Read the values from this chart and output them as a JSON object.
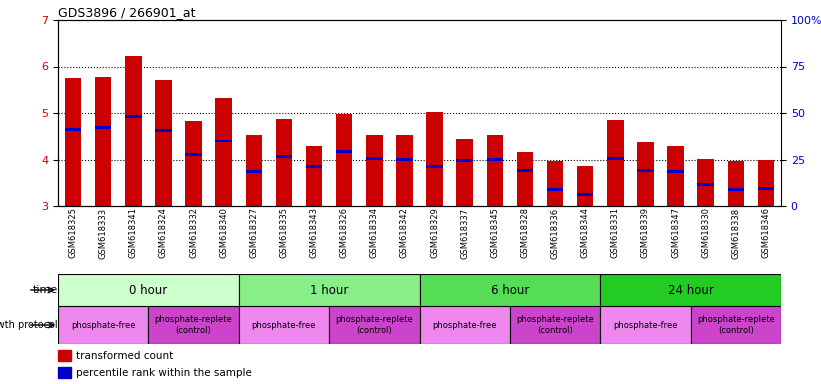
{
  "title": "GDS3896 / 266901_at",
  "samples": [
    "GSM618325",
    "GSM618333",
    "GSM618341",
    "GSM618324",
    "GSM618332",
    "GSM618340",
    "GSM618327",
    "GSM618335",
    "GSM618343",
    "GSM618326",
    "GSM618334",
    "GSM618342",
    "GSM618329",
    "GSM618337",
    "GSM618345",
    "GSM618328",
    "GSM618336",
    "GSM618344",
    "GSM618331",
    "GSM618339",
    "GSM618347",
    "GSM618330",
    "GSM618338",
    "GSM618346"
  ],
  "bar_tops": [
    5.75,
    5.78,
    6.22,
    5.72,
    4.82,
    5.33,
    4.52,
    4.88,
    4.28,
    4.98,
    4.52,
    4.52,
    5.02,
    4.45,
    4.52,
    4.17,
    3.97,
    3.87,
    4.85,
    4.37,
    4.3,
    4.02,
    3.97,
    3.98
  ],
  "bar_bottoms": [
    3.0,
    3.0,
    3.0,
    3.0,
    3.0,
    3.0,
    3.0,
    3.0,
    3.0,
    3.0,
    3.0,
    3.0,
    3.0,
    3.0,
    3.0,
    3.0,
    3.0,
    3.0,
    3.0,
    3.0,
    3.0,
    3.0,
    3.0,
    3.0
  ],
  "blue_marks": [
    4.65,
    4.68,
    4.93,
    4.62,
    4.1,
    4.4,
    3.75,
    4.07,
    3.85,
    4.17,
    4.02,
    4.0,
    3.85,
    3.98,
    4.0,
    3.77,
    3.35,
    3.25,
    4.02,
    3.77,
    3.75,
    3.47,
    3.35,
    3.37
  ],
  "ylim": [
    3,
    7
  ],
  "yticks_left": [
    3,
    4,
    5,
    6,
    7
  ],
  "yticks_right": [
    0,
    25,
    50,
    75,
    100
  ],
  "bar_color": "#cc0000",
  "blue_color": "#0000cc",
  "time_groups": [
    {
      "label": "0 hour",
      "start": 0,
      "end": 6,
      "color": "#ccffcc"
    },
    {
      "label": "1 hour",
      "start": 6,
      "end": 12,
      "color": "#88ee88"
    },
    {
      "label": "6 hour",
      "start": 12,
      "end": 18,
      "color": "#55dd55"
    },
    {
      "label": "24 hour",
      "start": 18,
      "end": 24,
      "color": "#22cc22"
    }
  ],
  "prot_groups": [
    {
      "label": "phosphate-free",
      "start": 0,
      "end": 3,
      "color": "#ee88ee"
    },
    {
      "label": "phosphate-replete\n(control)",
      "start": 3,
      "end": 6,
      "color": "#cc44cc"
    },
    {
      "label": "phosphate-free",
      "start": 6,
      "end": 9,
      "color": "#ee88ee"
    },
    {
      "label": "phosphate-replete\n(control)",
      "start": 9,
      "end": 12,
      "color": "#cc44cc"
    },
    {
      "label": "phosphate-free",
      "start": 12,
      "end": 15,
      "color": "#ee88ee"
    },
    {
      "label": "phosphate-replete\n(control)",
      "start": 15,
      "end": 18,
      "color": "#cc44cc"
    },
    {
      "label": "phosphate-free",
      "start": 18,
      "end": 21,
      "color": "#ee88ee"
    },
    {
      "label": "phosphate-replete\n(control)",
      "start": 21,
      "end": 24,
      "color": "#cc44cc"
    }
  ],
  "left_label_color": "#cc0000",
  "right_label_color": "#0000cc",
  "fig_width": 8.21,
  "fig_height": 3.84,
  "dpi": 100
}
